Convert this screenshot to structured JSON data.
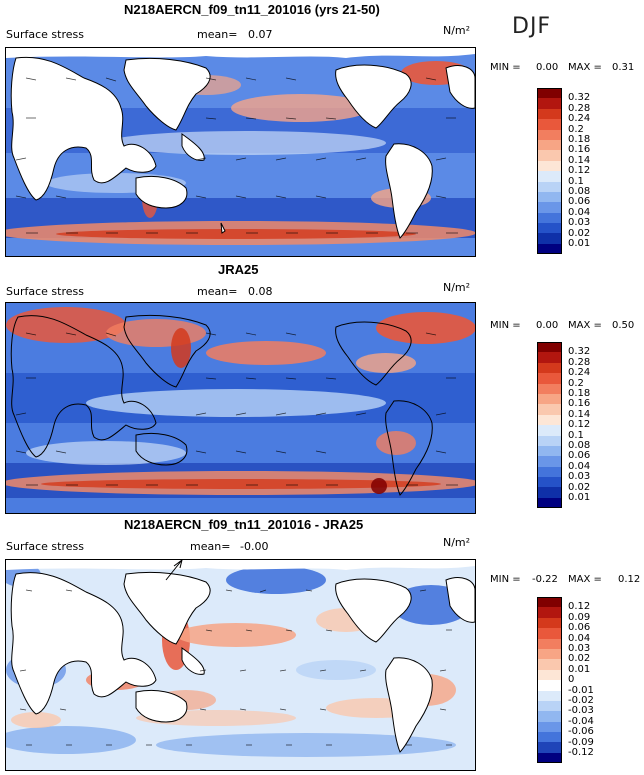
{
  "season": "DJF",
  "panels": [
    {
      "id": "model",
      "title": "N218AERCN_f09_tn11_201016 (yrs 21-50)",
      "variable": "Surface stress",
      "mean_label": "mean=",
      "mean_value": "0.07",
      "units": "N/m²",
      "stats": {
        "min_label": "MIN =",
        "min": "0.00",
        "max_label": "MAX =",
        "max": "0.31"
      },
      "colorbar": {
        "levels": [
          "0.32",
          "0.28",
          "0.24",
          "0.2",
          "0.18",
          "0.16",
          "0.14",
          "0.12",
          "0.1",
          "0.08",
          "0.06",
          "0.04",
          "0.03",
          "0.02",
          "0.01"
        ],
        "colors": [
          "#800000",
          "#b2160f",
          "#d4391c",
          "#e9583b",
          "#f27e5f",
          "#f7a585",
          "#fac8ae",
          "#fde6d6",
          "#dceafa",
          "#b9d3f6",
          "#91b7f0",
          "#6a96e8",
          "#4474db",
          "#2552c8",
          "#0f30a8",
          "#000080"
        ]
      }
    },
    {
      "id": "obs",
      "title": "JRA25",
      "variable": "Surface stress",
      "mean_label": "mean=",
      "mean_value": "0.08",
      "units": "N/m²",
      "stats": {
        "min_label": "MIN =",
        "min": "0.00",
        "max_label": "MAX =",
        "max": "0.50"
      },
      "colorbar": {
        "levels": [
          "0.32",
          "0.28",
          "0.24",
          "0.2",
          "0.18",
          "0.16",
          "0.14",
          "0.12",
          "0.1",
          "0.08",
          "0.06",
          "0.04",
          "0.03",
          "0.02",
          "0.01"
        ],
        "colors": [
          "#800000",
          "#b2160f",
          "#d4391c",
          "#e9583b",
          "#f27e5f",
          "#f7a585",
          "#fac8ae",
          "#fde6d6",
          "#dceafa",
          "#b9d3f6",
          "#91b7f0",
          "#6a96e8",
          "#4474db",
          "#2552c8",
          "#0f30a8",
          "#000080"
        ]
      }
    },
    {
      "id": "diff",
      "title": "N218AERCN_f09_tn11_201016 - JRA25",
      "variable": "Surface stress",
      "mean_label": "mean=",
      "mean_value": "-0.00",
      "units": "N/m²",
      "stats": {
        "min_label": "MIN =",
        "min": "-0.22",
        "max_label": "MAX =",
        "max": "0.12"
      },
      "colorbar": {
        "levels": [
          "0.12",
          "0.09",
          "0.06",
          "0.04",
          "0.03",
          "0.02",
          "0.01",
          "0",
          "-0.01",
          "-0.02",
          "-0.03",
          "-0.04",
          "-0.06",
          "-0.09",
          "-0.12"
        ],
        "colors": [
          "#800000",
          "#b2160f",
          "#d4391c",
          "#e9583b",
          "#f27e5f",
          "#f7a585",
          "#fac8ae",
          "#fde6d6",
          "#ffffff",
          "#dceafa",
          "#b9d3f6",
          "#91b7f0",
          "#6a96e8",
          "#4474db",
          "#1f44b8",
          "#000080"
        ]
      }
    }
  ]
}
